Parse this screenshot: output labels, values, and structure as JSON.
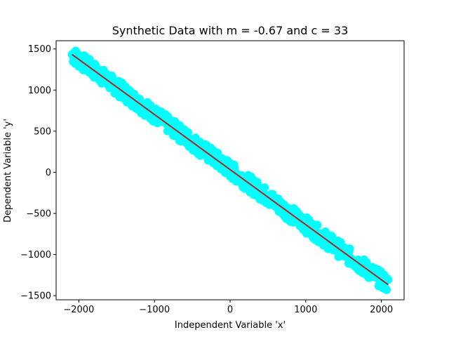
{
  "chart_data": {
    "type": "scatter",
    "title": "Synthetic Data with m = -0.67 and c = 33",
    "xlabel": "Independent Variable 'x'",
    "ylabel": "Dependent Variable 'y'",
    "xlim": [
      -2300,
      2300
    ],
    "ylim": [
      -1550,
      1600
    ],
    "xticks": [
      -2000,
      -1000,
      0,
      1000,
      2000
    ],
    "yticks": [
      -1500,
      -1000,
      -500,
      0,
      500,
      1000,
      1500
    ],
    "xtick_labels": [
      "−2000",
      "−1000",
      "0",
      "1000",
      "2000"
    ],
    "ytick_labels": [
      "−1500",
      "−1000",
      "−500",
      "0",
      "500",
      "1000",
      "1500"
    ],
    "grid": false,
    "series": [
      {
        "kind": "scatter",
        "color": "#00ffff",
        "x_range": [
          -2090,
          2090
        ],
        "band": {
          "slope": -0.67,
          "intercept": 33,
          "spread": 100
        },
        "sample_count": 600
      },
      {
        "kind": "line",
        "color": "#b22222",
        "x": [
          -2090,
          2090
        ],
        "y": [
          1433,
          -1367
        ]
      }
    ]
  }
}
